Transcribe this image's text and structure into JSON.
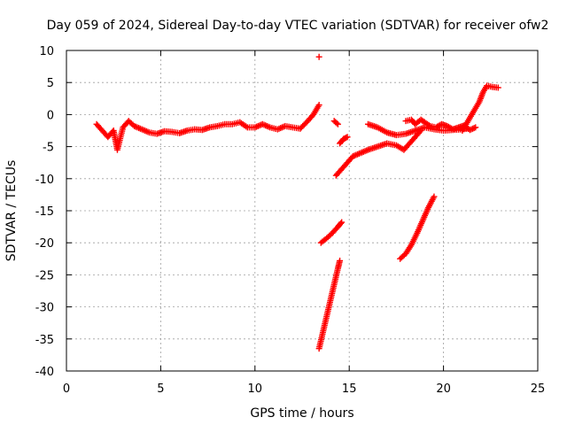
{
  "chart_data": {
    "type": "scatter",
    "title": "Day 059 of 2024, Sidereal Day-to-day VTEC variation (SDTVAR) for receiver ofw2",
    "xlabel": "GPS time / hours",
    "ylabel": "SDTVAR / TECUs",
    "xlim": [
      0,
      25
    ],
    "ylim": [
      -40,
      10
    ],
    "xticks": [
      "0",
      "5",
      "10",
      "15",
      "20",
      "25"
    ],
    "yticks": [
      "10",
      "5",
      "0",
      "-5",
      "-10",
      "-15",
      "-20",
      "-25",
      "-30",
      "-35",
      "-40"
    ],
    "grid": true,
    "marker": "plus",
    "color": "#ff0000",
    "series": [
      {
        "x": [
          1.6,
          1.9,
          2.2,
          2.5,
          2.7,
          3.0,
          3.3,
          3.6,
          4.0,
          4.4,
          4.8,
          5.2,
          5.6,
          6.0,
          6.4,
          6.8,
          7.2,
          7.6,
          8.0,
          8.4,
          8.8,
          9.2,
          9.6,
          10.0,
          10.4,
          10.8,
          11.2,
          11.6,
          12.0,
          12.4,
          12.8,
          13.1,
          13.4
        ],
        "y": [
          -1.5,
          -2.5,
          -3.5,
          -2.5,
          -5.5,
          -2.0,
          -1.0,
          -1.8,
          -2.3,
          -2.8,
          -3.0,
          -2.6,
          -2.7,
          -2.9,
          -2.5,
          -2.3,
          -2.4,
          -2.0,
          -1.8,
          -1.5,
          -1.5,
          -1.2,
          -2.0,
          -2.0,
          -1.5,
          -2.0,
          -2.3,
          -1.8,
          -2.0,
          -2.2,
          -1.0,
          0.0,
          1.5
        ]
      },
      {
        "x": [
          13.4
        ],
        "y": [
          9.0
        ]
      },
      {
        "x": [
          14.2,
          14.4
        ],
        "y": [
          -1.0,
          -1.5
        ]
      },
      {
        "x": [
          14.5,
          14.7,
          14.9
        ],
        "y": [
          -4.5,
          -3.8,
          -3.5
        ]
      },
      {
        "x": [
          14.3,
          14.6,
          14.9,
          15.2,
          15.6,
          16.0,
          16.5,
          17.0,
          17.5,
          17.9,
          18.2,
          18.5,
          18.8
        ],
        "y": [
          -9.5,
          -8.5,
          -7.5,
          -6.5,
          -6.0,
          -5.5,
          -5.0,
          -4.5,
          -4.8,
          -5.5,
          -4.5,
          -3.5,
          -2.5
        ]
      },
      {
        "x": [
          16.0,
          16.5,
          17.0,
          17.5,
          18.0,
          18.5,
          19.0,
          19.5,
          20.0,
          20.5,
          21.0,
          21.3
        ],
        "y": [
          -1.5,
          -2.0,
          -2.8,
          -3.2,
          -3.0,
          -2.5,
          -2.0,
          -2.3,
          -2.5,
          -2.4,
          -2.3,
          -2.2
        ]
      },
      {
        "x": [
          18.0,
          18.3,
          18.5,
          18.8,
          19.0,
          19.3,
          19.6,
          19.9,
          20.2,
          20.5,
          20.8,
          21.1,
          21.4,
          21.7
        ],
        "y": [
          -1.0,
          -0.8,
          -1.5,
          -0.8,
          -1.2,
          -1.8,
          -2.0,
          -1.5,
          -1.8,
          -2.3,
          -2.0,
          -1.7,
          -2.4,
          -2.0
        ]
      },
      {
        "x": [
          21.0,
          21.3,
          21.6,
          21.9,
          22.1,
          22.3,
          22.6,
          22.9
        ],
        "y": [
          -2.5,
          -1.0,
          0.5,
          2.0,
          3.5,
          4.5,
          4.3,
          4.2
        ]
      },
      {
        "x": [
          13.5,
          13.8,
          14.1,
          14.4,
          14.6
        ],
        "y": [
          -20.0,
          -19.3,
          -18.5,
          -17.5,
          -16.8
        ]
      },
      {
        "x": [
          13.4,
          13.6,
          13.8,
          14.0,
          14.2,
          14.4,
          14.5
        ],
        "y": [
          -36.5,
          -34.0,
          -31.5,
          -29.0,
          -26.5,
          -24.0,
          -22.8
        ]
      },
      {
        "x": [
          17.7,
          18.0,
          18.3,
          18.6,
          18.9,
          19.2,
          19.5
        ],
        "y": [
          -22.5,
          -21.7,
          -20.3,
          -18.5,
          -16.5,
          -14.5,
          -12.8
        ]
      }
    ]
  }
}
